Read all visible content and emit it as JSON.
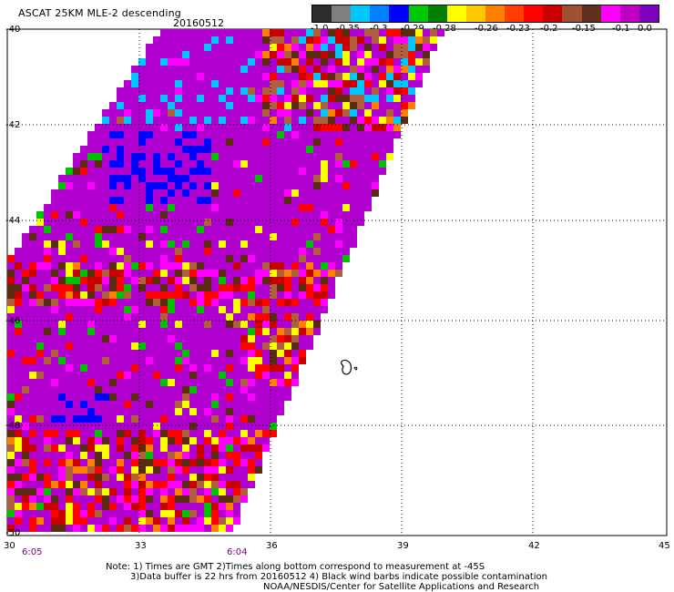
{
  "header": {
    "title": "ASCAT 25KM MLE-2 descending",
    "date": "20160512"
  },
  "colorbar": {
    "colors": [
      "#2d2d2d",
      "#7f7f7f",
      "#00c8ff",
      "#0080ff",
      "#0000ff",
      "#00c800",
      "#008000",
      "#ffff00",
      "#ffc800",
      "#ff8000",
      "#ff4000",
      "#ff0000",
      "#c80000",
      "#a05030",
      "#603020",
      "#ff00ff",
      "#c000c0",
      "#8000c0"
    ],
    "tick_labels": [
      "-1.0",
      "-0.35",
      "-0.3",
      "-0.29",
      "-0.28",
      "-0.26",
      "-0.23",
      "-0.2",
      "-0.15",
      "-0.1",
      "0.0"
    ]
  },
  "map": {
    "lat_labels": [
      "-40",
      "-42",
      "-44",
      "-46",
      "-48",
      "-50"
    ],
    "lon_labels": [
      "30",
      "33",
      "36",
      "39",
      "42",
      "45"
    ],
    "time_labels": [
      "6:05",
      "6:04"
    ],
    "swath_colors": {
      "purple": "#b000d0",
      "magenta": "#ff00ff",
      "red": "#ff0000",
      "darkred": "#c80000",
      "brown": "#5a2a10",
      "tan": "#b06040",
      "yellow": "#ffff00",
      "orange": "#ff8000",
      "gold": "#ffc800",
      "blue": "#0000ff",
      "cyan": "#00c8ff",
      "green": "#00c000",
      "darkgreen": "#006000"
    }
  },
  "notes": {
    "line1": "Note: 1) Times are GMT 2)Times along bottom correspond to measurement at -45S",
    "line2": "3)Data buffer is 22 hrs from 20160512 4) Black wind barbs indicate possible contamination",
    "line3": "NOAA/NESDIS/Center for Satellite Applications and Research"
  }
}
